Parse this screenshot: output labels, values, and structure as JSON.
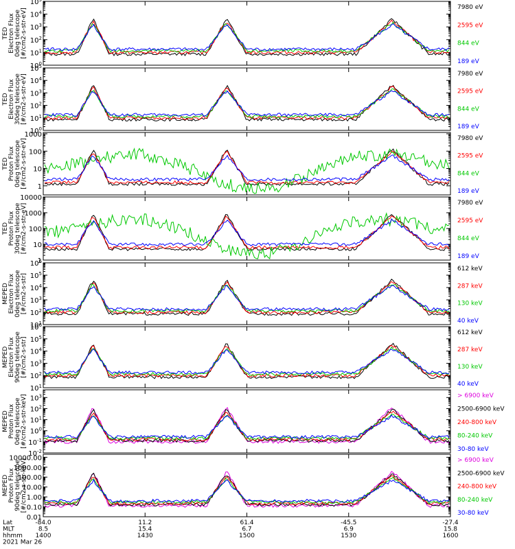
{
  "chart_data": [
    {
      "type": "line",
      "ylabel_lines": [
        "TED",
        "Electron Flux",
        "0deg telescope",
        "[#/cm2-s-str-eV]"
      ],
      "scale": "log",
      "tick_labels": [
        "10^0",
        "10^1",
        "10^2",
        "10^3",
        "10^4",
        "10^5"
      ],
      "ylim": [
        1,
        100000
      ],
      "series": [
        {
          "name": "7980 eV",
          "color": "#000000",
          "values": []
        },
        {
          "name": "2595 eV",
          "color": "#ff0000",
          "values": []
        },
        {
          "name": "844 eV",
          "color": "#00c800",
          "values": []
        },
        {
          "name": "189 eV",
          "color": "#0000ff",
          "values": []
        }
      ]
    },
    {
      "type": "line",
      "ylabel_lines": [
        "TED",
        "Electron Flux",
        "30deg telescope",
        "[#/cm2-s-str-eV]"
      ],
      "scale": "log",
      "tick_labels": [
        "10^0",
        "10^1",
        "10^2",
        "10^3",
        "10^4",
        "10^5"
      ],
      "ylim": [
        1,
        100000
      ],
      "series": [
        {
          "name": "7980 eV",
          "color": "#000000",
          "values": []
        },
        {
          "name": "2595 eV",
          "color": "#ff0000",
          "values": []
        },
        {
          "name": "844 eV",
          "color": "#00c800",
          "values": []
        },
        {
          "name": "189 eV",
          "color": "#0000ff",
          "values": []
        }
      ]
    },
    {
      "type": "line",
      "ylabel_lines": [
        "TED",
        "Proton Flux",
        "0deg telescope",
        "[#/cm2-s-str-eV]"
      ],
      "scale": "log",
      "tick_labels": [
        "1",
        "10",
        "100",
        "1000"
      ],
      "ylim": [
        0.3,
        1200
      ],
      "series": [
        {
          "name": "7980 eV",
          "color": "#000000",
          "values": []
        },
        {
          "name": "2595 eV",
          "color": "#ff0000",
          "values": []
        },
        {
          "name": "844 eV",
          "color": "#00c800",
          "values": []
        },
        {
          "name": "189 eV",
          "color": "#0000ff",
          "values": []
        }
      ]
    },
    {
      "type": "line",
      "ylabel_lines": [
        "TED",
        "Proton Flux",
        "30deg telescope",
        "[#/cm2-s-str-eV]"
      ],
      "scale": "log",
      "tick_labels": [
        "1",
        "10",
        "100",
        "1000",
        "10000"
      ],
      "ylim": [
        1,
        10000
      ],
      "series": [
        {
          "name": "7980 eV",
          "color": "#000000",
          "values": []
        },
        {
          "name": "2595 eV",
          "color": "#ff0000",
          "values": []
        },
        {
          "name": "844 eV",
          "color": "#00c800",
          "values": []
        },
        {
          "name": "189 eV",
          "color": "#0000ff",
          "values": []
        }
      ]
    },
    {
      "type": "line",
      "ylabel_lines": [
        "MEPED",
        "Electron Flux",
        "0deg telescope",
        "[#/cm2-s-str]"
      ],
      "scale": "log",
      "tick_labels": [
        "10^1",
        "10^2",
        "10^3",
        "10^4",
        "10^5",
        "10^6"
      ],
      "ylim": [
        10,
        1000000
      ],
      "series": [
        {
          "name": "612 keV",
          "color": "#000000",
          "values": []
        },
        {
          "name": "287 keV",
          "color": "#ff0000",
          "values": []
        },
        {
          "name": "130 keV",
          "color": "#00c800",
          "values": []
        },
        {
          "name": "40 keV",
          "color": "#0000ff",
          "values": []
        }
      ]
    },
    {
      "type": "line",
      "ylabel_lines": [
        "MEPED",
        "Electron Flux",
        "90deg telescope",
        "[#/cm2-s-str]"
      ],
      "scale": "log",
      "tick_labels": [
        "10^1",
        "10^2",
        "10^3",
        "10^4",
        "10^5",
        "10^6"
      ],
      "ylim": [
        10,
        1000000
      ],
      "series": [
        {
          "name": "612 keV",
          "color": "#000000",
          "values": []
        },
        {
          "name": "287 keV",
          "color": "#ff0000",
          "values": []
        },
        {
          "name": "130 keV",
          "color": "#00c800",
          "values": []
        },
        {
          "name": "40 keV",
          "color": "#0000ff",
          "values": []
        }
      ]
    },
    {
      "type": "line",
      "ylabel_lines": [
        "MEPED",
        "Proton Flux",
        "0deg telescope",
        "[#/cm2-s-str-keV]"
      ],
      "scale": "log",
      "tick_labels": [
        "10^-2",
        "10^-1",
        "10^0",
        "10^1",
        "10^2",
        "10^3"
      ],
      "ylim": [
        0.01,
        5000
      ],
      "series": [
        {
          "name": "> 6900 keV",
          "color": "#dd00dd",
          "values": []
        },
        {
          "name": "2500-6900 keV",
          "color": "#000000",
          "values": []
        },
        {
          "name": "240-800 keV",
          "color": "#ff0000",
          "values": []
        },
        {
          "name": "80-240 keV",
          "color": "#00c800",
          "values": []
        },
        {
          "name": "30-80 keV",
          "color": "#0000ff",
          "values": []
        }
      ]
    },
    {
      "type": "line",
      "ylabel_lines": [
        "MEPED",
        "Proton Flux",
        "90deg telescope",
        "[#/cm2-s-str-keV]"
      ],
      "scale": "log",
      "tick_labels": [
        "0.01",
        "0.10",
        "1.00",
        "10.00",
        "100.00",
        "1000.00",
        "10000.00"
      ],
      "ylim": [
        0.01,
        20000
      ],
      "series": [
        {
          "name": "> 6900 keV",
          "color": "#dd00dd",
          "values": []
        },
        {
          "name": "2500-6900 keV",
          "color": "#000000",
          "values": []
        },
        {
          "name": "240-800 keV",
          "color": "#ff0000",
          "values": []
        },
        {
          "name": "80-240 keV",
          "color": "#00c800",
          "values": []
        },
        {
          "name": "30-80 keV",
          "color": "#0000ff",
          "values": []
        }
      ]
    }
  ],
  "xaxis": {
    "row_labels": [
      "Lat",
      "MLT",
      "hhmm",
      "2021 Mar 26"
    ],
    "ticks": [
      {
        "lat": "-84.0",
        "mlt": "8.5",
        "hhmm": "1400"
      },
      {
        "lat": "11.2",
        "mlt": "15.4",
        "hhmm": "1430"
      },
      {
        "lat": "61.4",
        "mlt": "6.7",
        "hhmm": "1500"
      },
      {
        "lat": "-45.5",
        "mlt": "6.9",
        "hhmm": "1530"
      },
      {
        "lat": "-27.4",
        "mlt": "15.8",
        "hhmm": "1600"
      }
    ]
  }
}
